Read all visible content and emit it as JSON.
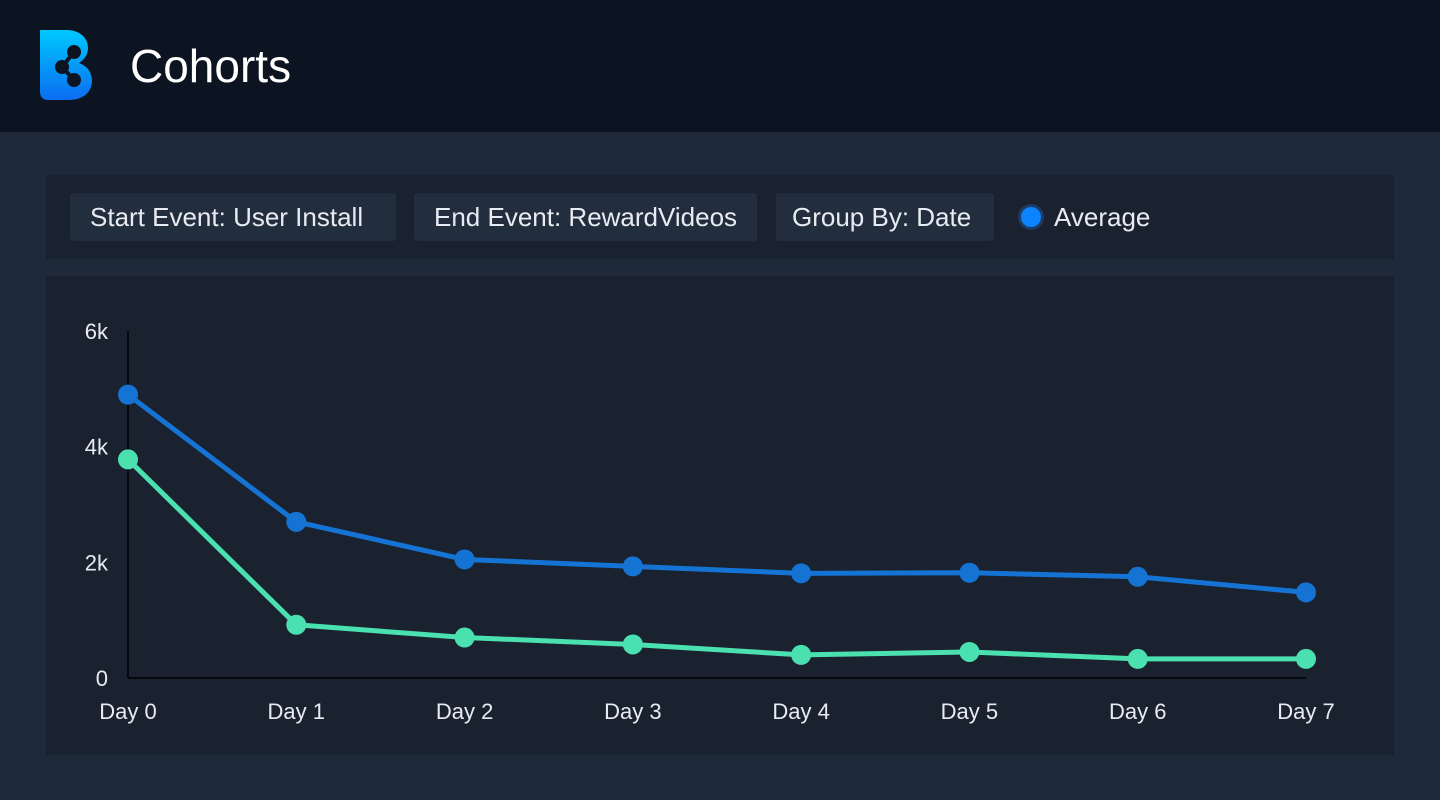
{
  "header": {
    "title": "Cohorts"
  },
  "toolbar": {
    "start_event": "Start Event: User Install",
    "end_event": "End Event: RewardVideos",
    "group_by": "Group By: Date",
    "legend_label": "Average"
  },
  "colors": {
    "series_blue": "#1573d3",
    "series_green": "#4be0b0",
    "legend_dot": "#0a84ff"
  },
  "chart_data": {
    "type": "line",
    "categories": [
      "Day 0",
      "Day 1",
      "Day 2",
      "Day 3",
      "Day 4",
      "Day 5",
      "Day 6",
      "Day 7"
    ],
    "y_ticks": [
      {
        "value": 0,
        "label": "0"
      },
      {
        "value": 2000,
        "label": "2k"
      },
      {
        "value": 4000,
        "label": "4k"
      },
      {
        "value": 6000,
        "label": "6k"
      }
    ],
    "ylim": [
      0,
      6000
    ],
    "grid": false,
    "series": [
      {
        "color": "#1573d3",
        "values": [
          4900,
          2700,
          2050,
          1930,
          1810,
          1820,
          1750,
          1480
        ]
      },
      {
        "color": "#4be0b0",
        "values": [
          3780,
          920,
          700,
          580,
          400,
          450,
          330,
          330
        ]
      }
    ]
  }
}
